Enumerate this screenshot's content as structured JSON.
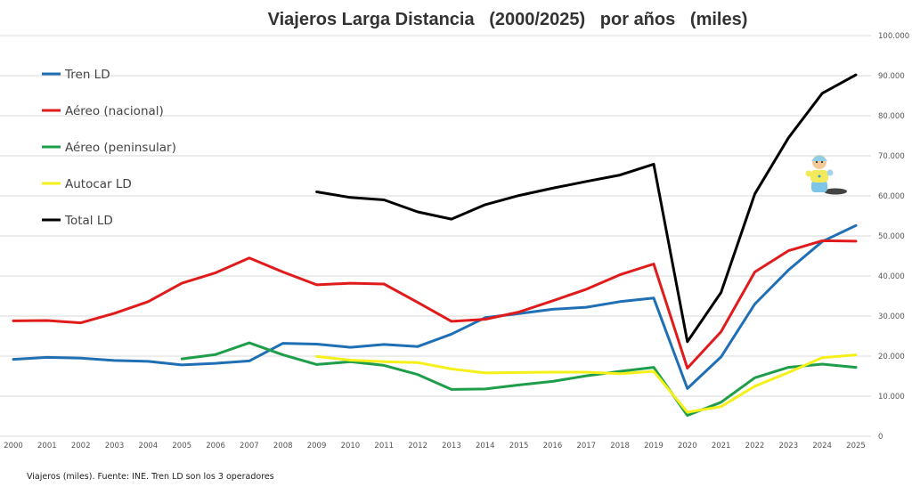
{
  "chart_data": {
    "type": "line",
    "title": "Viajeros Larga Distancia   (2000/2025)   por años   (miles)",
    "footnote": "Viajeros (miles). Fuente: INE. Tren LD son los 3 operadores",
    "xlabel": "",
    "ylabel": "",
    "ylim": [
      0,
      100000
    ],
    "grid": true,
    "legend_position": "top-left",
    "y_ticks": [
      "0",
      "10.000",
      "20.000",
      "30.000",
      "40.000",
      "50.000",
      "60.000",
      "70.000",
      "80.000",
      "90.000",
      "100.000"
    ],
    "y_tick_values": [
      0,
      10000,
      20000,
      30000,
      40000,
      50000,
      60000,
      70000,
      80000,
      90000,
      100000
    ],
    "x": [
      "2000",
      "2001",
      "2002",
      "2003",
      "2004",
      "2005",
      "2006",
      "2007",
      "2008",
      "2009",
      "2010",
      "2011",
      "2012",
      "2013",
      "2014",
      "2015",
      "2016",
      "2017",
      "2018",
      "2019",
      "2020",
      "2021",
      "2022",
      "2023",
      "2024",
      "2025"
    ],
    "series": [
      {
        "name": "Tren LD",
        "color": "#1f6fb5",
        "values": [
          19200,
          19700,
          19500,
          18900,
          18700,
          17800,
          18200,
          18800,
          23200,
          23000,
          22200,
          22900,
          22400,
          25500,
          29600,
          30600,
          31700,
          32200,
          33600,
          34500,
          11900,
          19800,
          33000,
          41500,
          48600,
          52600
        ]
      },
      {
        "name": "Aéreo (nacional)",
        "color": "#e01b1b",
        "values": [
          28800,
          28900,
          28300,
          30700,
          33600,
          38200,
          40800,
          44500,
          41000,
          37800,
          38200,
          38000,
          33400,
          28700,
          29200,
          31000,
          33800,
          36700,
          40300,
          43000,
          17000,
          26100,
          41000,
          46300,
          48800,
          48700
        ]
      },
      {
        "name": "Aéreo (peninsular)",
        "color": "#1e9e4a",
        "values": [
          null,
          null,
          null,
          null,
          null,
          19300,
          20400,
          23300,
          20300,
          17900,
          18600,
          17700,
          15400,
          11700,
          11800,
          12800,
          13700,
          15100,
          16200,
          17200,
          5200,
          8500,
          14600,
          17200,
          18000,
          17200
        ]
      },
      {
        "name": "Autocar LD",
        "color": "#f5f01a",
        "values": [
          null,
          null,
          null,
          null,
          null,
          null,
          null,
          null,
          null,
          19900,
          19000,
          18600,
          18400,
          16800,
          15800,
          15900,
          16000,
          16000,
          15600,
          16200,
          6000,
          7400,
          12500,
          15900,
          19600,
          20300
        ]
      },
      {
        "name": "Total LD",
        "color": "#000000",
        "values": [
          null,
          null,
          null,
          null,
          null,
          null,
          null,
          null,
          null,
          61000,
          59600,
          59000,
          56000,
          54200,
          57800,
          60100,
          61900,
          63600,
          65200,
          67900,
          23600,
          35900,
          60500,
          74500,
          85600,
          90200
        ]
      }
    ]
  }
}
